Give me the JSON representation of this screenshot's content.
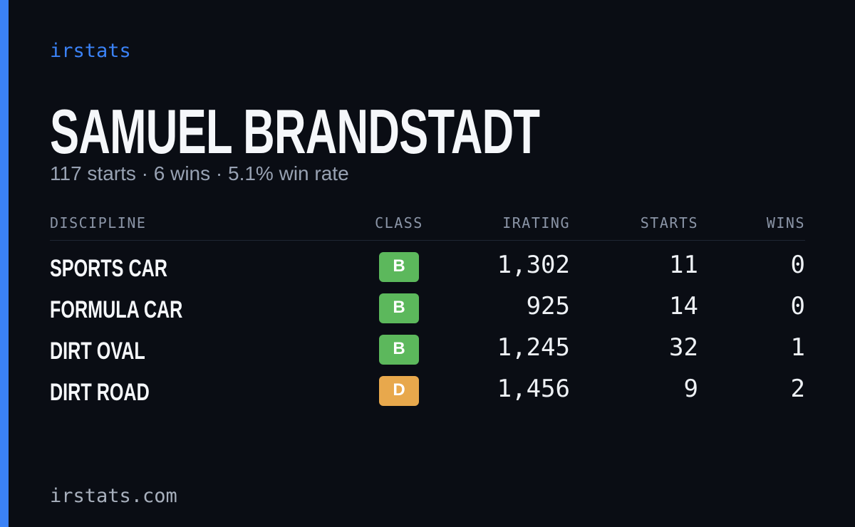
{
  "brand": "irstats",
  "driver": {
    "name": "SAMUEL BRANDSTADT",
    "summary": "117 starts · 6 wins · 5.1% win rate"
  },
  "table": {
    "headers": [
      "DISCIPLINE",
      "CLASS",
      "IRATING",
      "STARTS",
      "WINS"
    ],
    "rows": [
      {
        "discipline": "SPORTS CAR",
        "class": "B",
        "class_color": "#5cb85c",
        "irating": "1,302",
        "starts": "11",
        "wins": "0"
      },
      {
        "discipline": "FORMULA CAR",
        "class": "B",
        "class_color": "#5cb85c",
        "irating": "925",
        "starts": "14",
        "wins": "0"
      },
      {
        "discipline": "DIRT OVAL",
        "class": "B",
        "class_color": "#5cb85c",
        "irating": "1,245",
        "starts": "32",
        "wins": "1"
      },
      {
        "discipline": "DIRT ROAD",
        "class": "D",
        "class_color": "#e8a84c",
        "irating": "1,456",
        "starts": "9",
        "wins": "2"
      }
    ]
  },
  "footer": "irstats.com"
}
